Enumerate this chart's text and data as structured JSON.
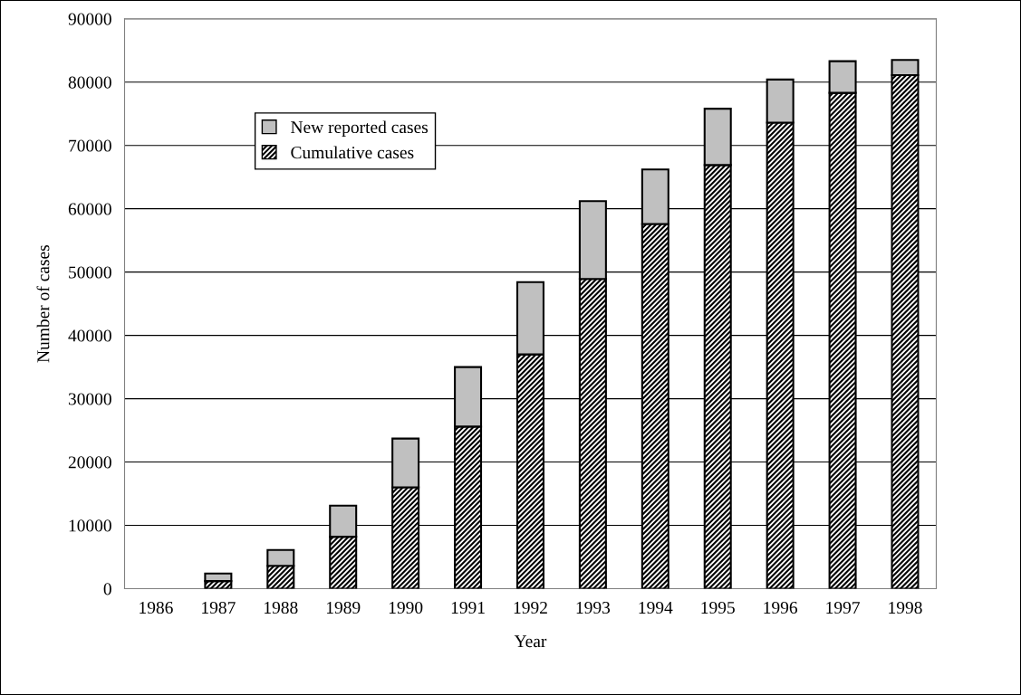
{
  "chart_data": {
    "type": "bar",
    "xlabel": "Year",
    "ylabel": "Number of cases",
    "categories": [
      "1986",
      "1987",
      "1988",
      "1989",
      "1990",
      "1991",
      "1992",
      "1993",
      "1994",
      "1995",
      "1996",
      "1997",
      "1998"
    ],
    "stacked": true,
    "series": [
      {
        "name": "Cumulative cases",
        "color": "#000000",
        "values": [
          0,
          1200,
          3600,
          8200,
          16000,
          25600,
          37000,
          48900,
          57600,
          66900,
          73600,
          78300,
          81100
        ]
      },
      {
        "name": "New reported cases",
        "color": "#c0c0c0",
        "values": [
          0,
          1200,
          2500,
          4900,
          7700,
          9400,
          11400,
          12300,
          8600,
          8900,
          6800,
          5000,
          2400
        ]
      }
    ],
    "ylim": [
      0,
      90000
    ],
    "yticks": [
      0,
      10000,
      20000,
      30000,
      40000,
      50000,
      60000,
      70000,
      80000,
      90000
    ],
    "grid": "y",
    "legend": "top left"
  }
}
